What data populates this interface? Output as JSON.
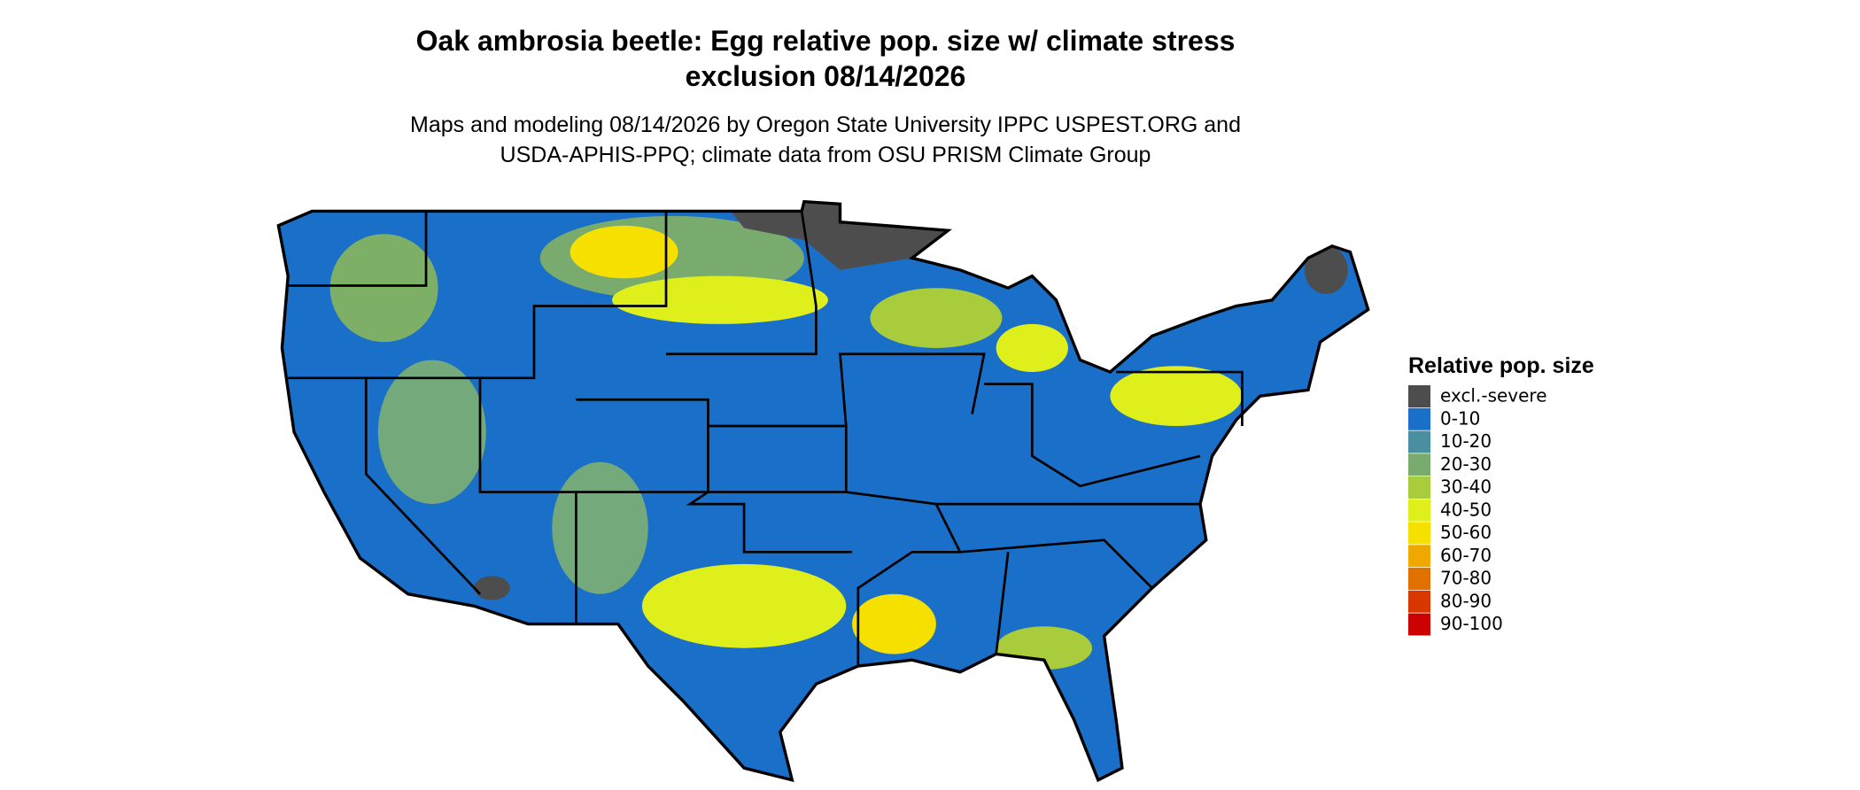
{
  "title_lines": [
    "Oak ambrosia beetle: Egg relative pop. size w/ climate stress",
    "exclusion 08/14/2026"
  ],
  "subtitle_lines": [
    "Maps and modeling 08/14/2026 by Oregon State University IPPC USPEST.ORG and",
    "USDA-APHIS-PPQ; climate data from OSU PRISM Climate Group"
  ],
  "legend": {
    "title": "Relative pop. size",
    "items": [
      {
        "label": "excl.-severe",
        "color": "#4d4d4d"
      },
      {
        "label": "0-10",
        "color": "#1a6fc9"
      },
      {
        "label": "10-20",
        "color": "#4a8fa0"
      },
      {
        "label": "20-30",
        "color": "#7aab6e"
      },
      {
        "label": "30-40",
        "color": "#a8cc3c"
      },
      {
        "label": "40-50",
        "color": "#dfef1c"
      },
      {
        "label": "50-60",
        "color": "#f5e000"
      },
      {
        "label": "60-70",
        "color": "#f0a800"
      },
      {
        "label": "70-80",
        "color": "#e07000"
      },
      {
        "label": "80-90",
        "color": "#d83800"
      },
      {
        "label": "90-100",
        "color": "#cc0000"
      }
    ]
  }
}
